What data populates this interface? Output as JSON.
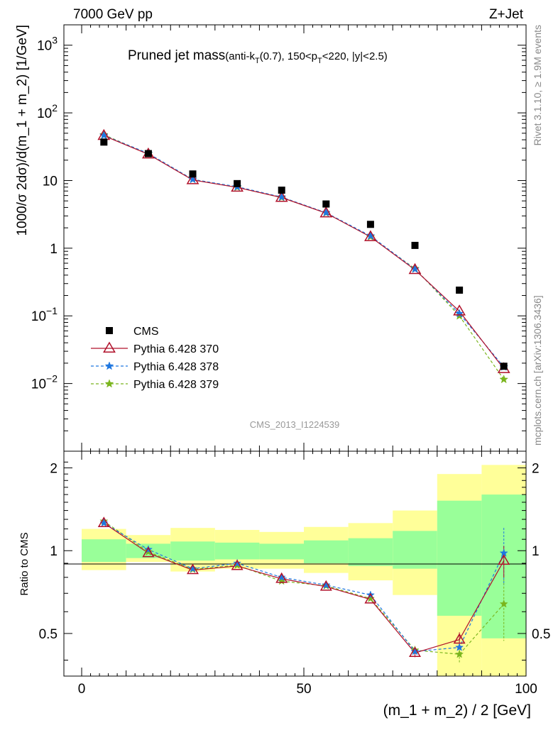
{
  "header": {
    "energy_label": "7000 GeV pp",
    "process_label": "Z+Jet"
  },
  "side_labels": {
    "rivet": "Rivet 3.1.10, ≥ 1.9M events",
    "mcplots": "mcplots.cern.ch [arXiv:1306.3436]"
  },
  "chart_data": [
    {
      "type": "scatter",
      "title": "Pruned jet mass",
      "subtitle_parts": {
        "a": "(anti-k",
        "b": "T",
        "c": "(0.7), 150<p",
        "d": "T",
        "e": "<220, |y|<2.5)"
      },
      "analysis_id": "CMS_2013_I1224539",
      "ylabel": "1000/σ 2dσ)/d(m_1 + m_2) [1/GeV]",
      "yscale": "log",
      "ylim": [
        0.001,
        2000
      ],
      "xlim": [
        -4,
        100
      ],
      "ytick_labels": [
        {
          "base": "10",
          "exp": "3"
        },
        {
          "base": "10",
          "exp": "2"
        },
        {
          "base": "10",
          "exp": ""
        },
        {
          "base": "1",
          "exp": ""
        },
        {
          "base": "10",
          "exp": "−1"
        },
        {
          "base": "10",
          "exp": "−2"
        }
      ],
      "x": [
        5,
        15,
        25,
        35,
        45,
        55,
        65,
        75,
        85,
        95
      ],
      "series": [
        {
          "name": "CMS",
          "color": "#000000",
          "marker": "square",
          "values": [
            37,
            25,
            12.5,
            9.0,
            7.2,
            4.5,
            2.25,
            1.1,
            0.24,
            0.018
          ]
        },
        {
          "name": "Pythia 6.428 370",
          "color": "#b0102a",
          "marker": "triangle-open",
          "dash": "solid",
          "values": [
            46,
            24.5,
            10.2,
            7.9,
            5.6,
            3.3,
            1.47,
            0.48,
            0.117,
            0.0165
          ]
        },
        {
          "name": "Pythia 6.428 378",
          "color": "#1f77e0",
          "marker": "star",
          "dash": "dashed",
          "values": [
            46.5,
            25.2,
            10.4,
            8.1,
            5.7,
            3.35,
            1.52,
            0.49,
            0.108,
            0.0176
          ]
        },
        {
          "name": "Pythia 6.428 379",
          "color": "#7ab51d",
          "marker": "star",
          "dash": "dashed",
          "values": [
            47.5,
            24.8,
            10.4,
            7.95,
            5.6,
            3.32,
            1.48,
            0.5,
            0.1,
            0.0115
          ]
        }
      ]
    },
    {
      "type": "scatter",
      "ylabel": "Ratio to CMS",
      "xlabel": "(m_1 + m_2) / 2 [GeV]",
      "yscale": "log",
      "ylim": [
        0.35,
        2.3
      ],
      "xlim": [
        -4,
        100
      ],
      "xticks": [
        0,
        50,
        100
      ],
      "xtick_labels": [
        "0",
        "50",
        "100"
      ],
      "yticks": [
        0.5,
        1,
        2
      ],
      "ytick_labels": [
        "0.5",
        "1",
        "2"
      ],
      "x": [
        5,
        15,
        25,
        35,
        45,
        55,
        65,
        75,
        85,
        95
      ],
      "bands": {
        "edges": [
          0,
          10,
          20,
          30,
          40,
          50,
          60,
          70,
          80,
          90,
          100
        ],
        "green_low": [
          0.91,
          0.94,
          0.92,
          0.93,
          0.93,
          0.9,
          0.88,
          0.86,
          0.58,
          0.48
        ],
        "green_high": [
          1.1,
          1.06,
          1.08,
          1.07,
          1.06,
          1.09,
          1.11,
          1.18,
          1.52,
          1.6
        ],
        "yellow_low": [
          0.85,
          0.91,
          0.84,
          0.86,
          0.86,
          0.83,
          0.78,
          0.69,
          0.35,
          0.35
        ],
        "yellow_high": [
          1.2,
          1.14,
          1.21,
          1.19,
          1.17,
          1.22,
          1.26,
          1.4,
          1.9,
          2.05
        ],
        "green_color": "#99ff99",
        "yellow_color": "#ffff99"
      },
      "series": [
        {
          "name": "Pythia 6.428 370",
          "color": "#b0102a",
          "marker": "triangle-open",
          "dash": "solid",
          "values": [
            1.26,
            0.98,
            0.85,
            0.88,
            0.79,
            0.74,
            0.665,
            0.425,
            0.475,
            0.92
          ],
          "err": [
            0,
            0,
            0,
            0,
            0,
            0,
            0,
            0.015,
            0.03,
            0.12
          ]
        },
        {
          "name": "Pythia 6.428 378",
          "color": "#1f77e0",
          "marker": "star",
          "dash": "dashed",
          "values": [
            1.26,
            1.01,
            0.86,
            0.9,
            0.8,
            0.75,
            0.69,
            0.43,
            0.445,
            0.98
          ],
          "err": [
            0,
            0,
            0,
            0,
            0,
            0,
            0,
            0.015,
            0.03,
            0.23
          ]
        },
        {
          "name": "Pythia 6.428 379",
          "color": "#7ab51d",
          "marker": "star",
          "dash": "dashed",
          "values": [
            1.28,
            0.99,
            0.855,
            0.885,
            0.775,
            0.745,
            0.67,
            0.435,
            0.42,
            0.64
          ],
          "err": [
            0,
            0,
            0,
            0,
            0,
            0,
            0,
            0.015,
            0.03,
            0.17
          ]
        }
      ]
    }
  ]
}
